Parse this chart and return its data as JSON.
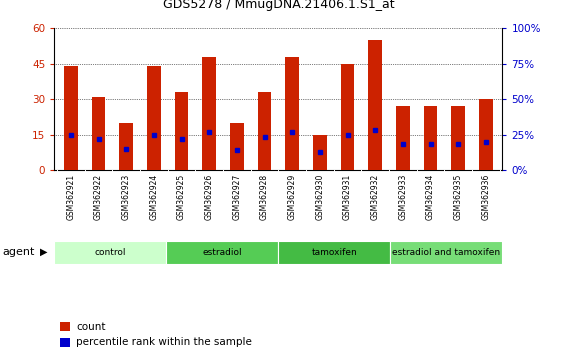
{
  "title": "GDS5278 / MmugDNA.21406.1.S1_at",
  "samples": [
    "GSM362921",
    "GSM362922",
    "GSM362923",
    "GSM362924",
    "GSM362925",
    "GSM362926",
    "GSM362927",
    "GSM362928",
    "GSM362929",
    "GSM362930",
    "GSM362931",
    "GSM362932",
    "GSM362933",
    "GSM362934",
    "GSM362935",
    "GSM362936"
  ],
  "count_values": [
    44,
    31,
    20,
    44,
    33,
    48,
    20,
    33,
    48,
    15,
    45,
    55,
    27,
    27,
    27,
    30
  ],
  "percentile_values": [
    25,
    22,
    15,
    25,
    22,
    27,
    14,
    23,
    27,
    13,
    25,
    28,
    18,
    18,
    18,
    20
  ],
  "bar_color": "#cc2200",
  "dot_color": "#0000cc",
  "ylim_left": [
    0,
    60
  ],
  "ylim_right": [
    0,
    100
  ],
  "yticks_left": [
    0,
    15,
    30,
    45,
    60
  ],
  "yticks_right": [
    0,
    25,
    50,
    75,
    100
  ],
  "ytick_labels_left": [
    "0",
    "15",
    "30",
    "45",
    "60"
  ],
  "ytick_labels_right": [
    "0%",
    "25%",
    "50%",
    "75%",
    "100%"
  ],
  "groups": [
    {
      "label": "control",
      "n": 4,
      "color": "#ccffcc"
    },
    {
      "label": "estradiol",
      "n": 4,
      "color": "#55cc55"
    },
    {
      "label": "tamoxifen",
      "n": 4,
      "color": "#44bb44"
    },
    {
      "label": "estradiol and tamoxifen",
      "n": 4,
      "color": "#77dd77"
    }
  ],
  "group_separator_color": "#aaaaaa",
  "agent_label": "agent",
  "legend_count_label": "count",
  "legend_percentile_label": "percentile rank within the sample",
  "bar_width": 0.5,
  "background_color": "#ffffff",
  "plot_bg_color": "#ffffff",
  "grid_color": "#000000",
  "tick_label_color_left": "#cc2200",
  "tick_label_color_right": "#0000cc",
  "xtick_bg_color": "#cccccc"
}
